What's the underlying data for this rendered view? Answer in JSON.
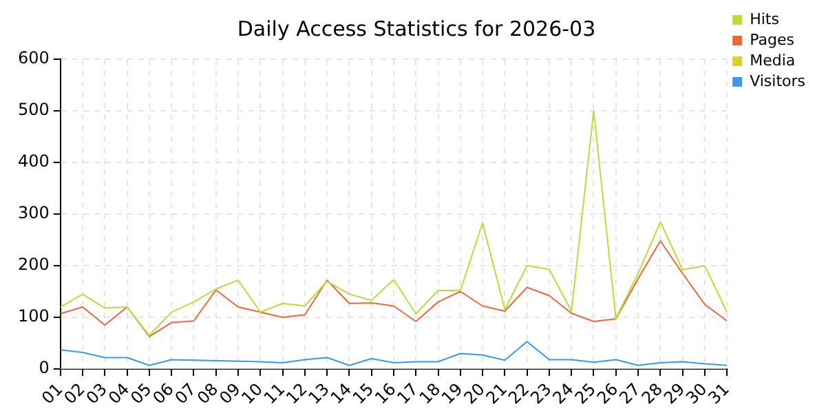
{
  "chart_data": {
    "type": "line",
    "title": "Daily Access Statistics for 2026-03",
    "categories": [
      "01",
      "02",
      "03",
      "04",
      "05",
      "06",
      "07",
      "08",
      "09",
      "10",
      "11",
      "12",
      "13",
      "14",
      "15",
      "16",
      "17",
      "18",
      "19",
      "20",
      "21",
      "22",
      "23",
      "24",
      "25",
      "26",
      "27",
      "28",
      "29",
      "30",
      "31"
    ],
    "series": [
      {
        "name": "Hits",
        "color": "#b8dc3a",
        "values": [
          120,
          145,
          118,
          120,
          65,
          110,
          130,
          155,
          172,
          110,
          127,
          122,
          170,
          145,
          133,
          173,
          107,
          152,
          152,
          283,
          115,
          200,
          193,
          112,
          500,
          98,
          185,
          285,
          192,
          200,
          110
        ]
      },
      {
        "name": "Pages",
        "color": "#e8683a",
        "values": [
          107,
          120,
          85,
          120,
          63,
          90,
          93,
          153,
          120,
          110,
          100,
          105,
          172,
          127,
          128,
          122,
          92,
          130,
          150,
          122,
          112,
          158,
          142,
          108,
          92,
          97,
          175,
          248,
          185,
          125,
          93
        ]
      },
      {
        "name": "Media",
        "color": "#d8d22a",
        "values": [
          0,
          0,
          0,
          0,
          0,
          0,
          0,
          0,
          0,
          0,
          0,
          0,
          0,
          0,
          0,
          0,
          0,
          0,
          0,
          0,
          0,
          0,
          0,
          0,
          0,
          0,
          0,
          0,
          0,
          0,
          0
        ]
      },
      {
        "name": "Visitors",
        "color": "#3a9ae8",
        "values": [
          37,
          32,
          22,
          22,
          7,
          18,
          17,
          16,
          15,
          14,
          12,
          18,
          22,
          7,
          20,
          12,
          14,
          14,
          30,
          27,
          17,
          53,
          18,
          18,
          13,
          18,
          7,
          12,
          14,
          10,
          7
        ]
      }
    ],
    "ylim": [
      0,
      600
    ],
    "yticks": [
      0,
      100,
      200,
      300,
      400,
      500,
      600
    ],
    "grid": true,
    "legend": "top right",
    "marker": "none",
    "line_style": "solid"
  }
}
